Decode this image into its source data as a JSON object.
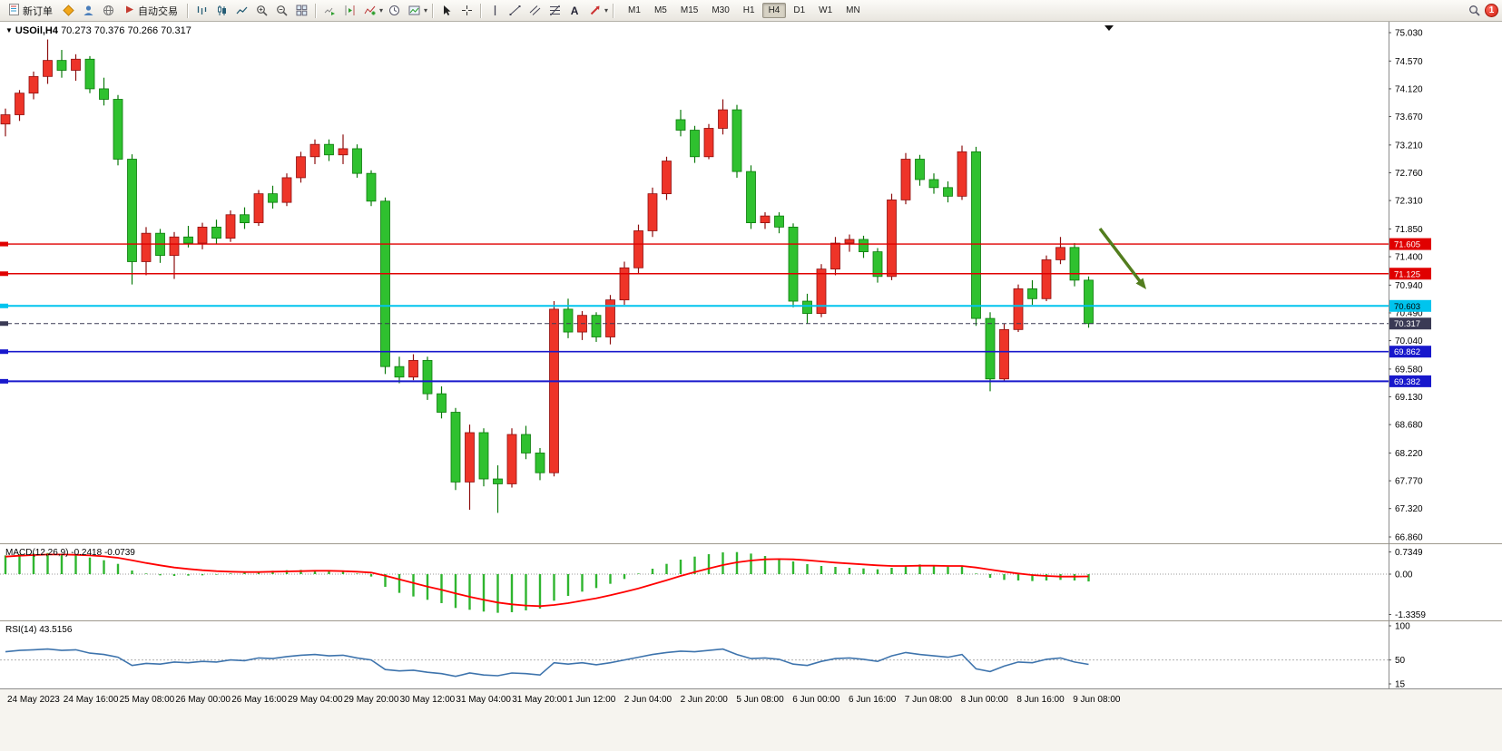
{
  "icons": {
    "collapse": "▼",
    "caret": "▾"
  },
  "toolbar": {
    "new_order_label": "新订单",
    "autotrading_label": "自动交易",
    "text_tool_label": "A",
    "timeframes": [
      "M1",
      "M5",
      "M15",
      "M30",
      "H1",
      "H4",
      "D1",
      "W1",
      "MN"
    ],
    "active_timeframe": "H4",
    "notification_count": "1"
  },
  "chart": {
    "symbol": "USOil,H4",
    "ohlc": "70.273 70.376 70.266 70.317",
    "price_max": 75.03,
    "price_min": 66.86,
    "price_axis": [
      "75.030",
      "74.570",
      "74.120",
      "73.670",
      "73.210",
      "72.760",
      "72.310",
      "71.850",
      "71.400",
      "70.940",
      "70.490",
      "70.040",
      "69.580",
      "69.130",
      "68.680",
      "68.220",
      "67.770",
      "67.320",
      "66.860"
    ],
    "hlines": [
      {
        "price": 71.605,
        "label": "71.605",
        "color": "#e00000",
        "text": "#ffffff",
        "width": 1.4
      },
      {
        "price": 71.125,
        "label": "71.125",
        "color": "#e00000",
        "text": "#ffffff",
        "width": 1.4
      },
      {
        "price": 70.603,
        "label": "70.603",
        "color": "#00c4ee",
        "text": "#000000",
        "width": 2
      },
      {
        "price": 70.317,
        "label": "70.317",
        "color": "#3a3a55",
        "text": "#ffffff",
        "width": 1,
        "dashed": true
      },
      {
        "price": 69.862,
        "label": "69.862",
        "color": "#1818cc",
        "text": "#ffffff",
        "width": 1.6
      },
      {
        "price": 69.382,
        "label": "69.382",
        "color": "#1818cc",
        "text": "#ffffff",
        "width": 2
      }
    ],
    "arrow_color": "#527d1e",
    "up_fill": "#ee3428",
    "up_stroke": "#8d0f0f",
    "down_fill": "#2fc12f",
    "down_stroke": "#0b7a0b"
  },
  "macd": {
    "name": "MACD(12,26,9)",
    "value_main": "-0.2418",
    "value_signal": "-0.0739",
    "axis": [
      "0.7349",
      "0.00",
      "-1.3359"
    ],
    "hist_color": "#2fb52f",
    "signal_color": "#ff0000"
  },
  "rsi": {
    "name": "RSI(14)",
    "value": "43.5156",
    "axis": [
      "100",
      "50",
      "15"
    ],
    "max": 100,
    "min": 15,
    "line_color": "#3e74ad"
  },
  "chart_data": [
    {
      "type": "candlestick",
      "title": "USOil,H4",
      "x_labels": [
        "24 May 2023",
        "24 May 16:00",
        "25 May 08:00",
        "26 May 00:00",
        "26 May 16:00",
        "29 May 04:00",
        "29 May 20:00",
        "30 May 12:00",
        "31 May 04:00",
        "31 May 20:00",
        "1 Jun 12:00",
        "2 Jun 04:00",
        "2 Jun 20:00",
        "5 Jun 08:00",
        "6 Jun 00:00",
        "6 Jun 16:00",
        "7 Jun 08:00",
        "8 Jun 00:00",
        "8 Jun 16:00",
        "9 Jun 08:00"
      ],
      "o": [
        73.55,
        73.7,
        74.05,
        74.32,
        74.58,
        74.42,
        74.6,
        74.12,
        73.95,
        72.98,
        71.32,
        71.78,
        71.42,
        71.72,
        71.62,
        71.88,
        71.7,
        72.08,
        71.95,
        72.42,
        72.28,
        72.68,
        73.02,
        73.22,
        73.05,
        73.15,
        72.75,
        72.3,
        69.62,
        69.45,
        69.72,
        69.18,
        68.88,
        67.75,
        68.55,
        67.8,
        67.72,
        68.52,
        68.22,
        67.9,
        70.55,
        70.18,
        70.45,
        70.1,
        70.7,
        71.22,
        71.82,
        72.42,
        73.62,
        73.45,
        73.02,
        73.48,
        73.78,
        72.78,
        71.95,
        72.06,
        71.88,
        70.68,
        70.48,
        71.2,
        71.62,
        71.68,
        71.48,
        71.08,
        72.32,
        72.98,
        72.65,
        72.52,
        72.38,
        73.1,
        70.4,
        69.42,
        70.22,
        70.88,
        70.72,
        71.35,
        71.55,
        71.02
      ],
      "h": [
        73.8,
        74.1,
        74.4,
        74.92,
        74.75,
        74.68,
        74.65,
        74.3,
        74.02,
        73.06,
        71.88,
        71.85,
        71.8,
        71.9,
        71.95,
        72.0,
        72.15,
        72.2,
        72.48,
        72.55,
        72.75,
        73.1,
        73.3,
        73.3,
        73.38,
        73.22,
        72.8,
        72.36,
        69.78,
        69.82,
        69.78,
        69.3,
        68.95,
        68.68,
        68.62,
        68.02,
        68.62,
        68.66,
        68.3,
        70.68,
        70.72,
        70.52,
        70.5,
        70.78,
        71.32,
        71.92,
        72.52,
        73.02,
        73.78,
        73.52,
        73.55,
        73.95,
        73.86,
        72.88,
        72.12,
        72.12,
        71.94,
        70.8,
        71.28,
        71.72,
        71.76,
        71.74,
        71.54,
        72.42,
        73.08,
        73.05,
        72.75,
        72.62,
        73.2,
        73.18,
        70.5,
        70.32,
        70.95,
        71.02,
        71.42,
        71.72,
        71.62,
        71.08
      ],
      "l": [
        73.35,
        73.6,
        73.95,
        74.2,
        74.3,
        74.25,
        74.05,
        73.85,
        72.88,
        70.95,
        71.1,
        71.3,
        71.04,
        71.55,
        71.52,
        71.6,
        71.64,
        71.85,
        71.9,
        72.18,
        72.22,
        72.6,
        72.9,
        72.95,
        72.9,
        72.68,
        72.22,
        69.5,
        69.35,
        69.4,
        69.08,
        68.78,
        67.62,
        67.3,
        67.68,
        67.25,
        67.66,
        68.12,
        67.78,
        67.84,
        70.08,
        70.05,
        70.02,
        69.98,
        70.62,
        71.12,
        71.72,
        72.32,
        73.35,
        72.92,
        72.98,
        73.38,
        72.68,
        71.85,
        71.85,
        71.78,
        70.58,
        70.32,
        70.42,
        71.1,
        71.48,
        71.38,
        70.98,
        71.02,
        72.25,
        72.55,
        72.42,
        72.28,
        72.32,
        70.28,
        69.22,
        69.38,
        70.18,
        70.62,
        70.68,
        71.28,
        70.92,
        70.25
      ],
      "c": [
        73.7,
        74.05,
        74.32,
        74.58,
        74.42,
        74.6,
        74.12,
        73.95,
        72.98,
        71.32,
        71.78,
        71.42,
        71.72,
        71.62,
        71.88,
        71.7,
        72.08,
        71.95,
        72.42,
        72.28,
        72.68,
        73.02,
        73.22,
        73.05,
        73.15,
        72.75,
        72.3,
        69.62,
        69.45,
        69.72,
        69.18,
        68.88,
        67.75,
        68.55,
        67.8,
        67.72,
        68.52,
        68.22,
        67.9,
        70.55,
        70.18,
        70.45,
        70.1,
        70.7,
        71.22,
        71.82,
        72.42,
        72.95,
        73.45,
        73.02,
        73.48,
        73.78,
        72.78,
        71.95,
        72.06,
        71.88,
        70.68,
        70.48,
        71.2,
        71.62,
        71.68,
        71.48,
        71.08,
        72.32,
        72.98,
        72.65,
        72.52,
        72.38,
        73.1,
        70.4,
        69.42,
        70.22,
        70.88,
        70.72,
        71.35,
        71.55,
        71.02,
        70.317
      ]
    },
    {
      "type": "bar",
      "name": "MACD",
      "values": [
        0.62,
        0.66,
        0.68,
        0.7,
        0.66,
        0.62,
        0.55,
        0.46,
        0.34,
        0.12,
        0.02,
        -0.04,
        -0.06,
        -0.05,
        -0.04,
        -0.02,
        0.02,
        0.05,
        0.08,
        0.11,
        0.13,
        0.14,
        0.13,
        0.11,
        0.08,
        0.02,
        -0.08,
        -0.42,
        -0.62,
        -0.74,
        -0.85,
        -0.96,
        -1.12,
        -1.18,
        -1.24,
        -1.28,
        -1.26,
        -1.2,
        -1.14,
        -0.88,
        -0.72,
        -0.58,
        -0.46,
        -0.32,
        -0.16,
        0.02,
        0.18,
        0.34,
        0.48,
        0.58,
        0.66,
        0.72,
        0.73,
        0.68,
        0.6,
        0.52,
        0.42,
        0.33,
        0.27,
        0.24,
        0.21,
        0.19,
        0.16,
        0.21,
        0.28,
        0.32,
        0.29,
        0.25,
        0.27,
        0.02,
        -0.12,
        -0.19,
        -0.21,
        -0.23,
        -0.21,
        -0.19,
        -0.21,
        -0.2418
      ],
      "signal": [
        0.58,
        0.61,
        0.63,
        0.65,
        0.65,
        0.64,
        0.62,
        0.59,
        0.54,
        0.46,
        0.37,
        0.29,
        0.22,
        0.17,
        0.13,
        0.1,
        0.08,
        0.07,
        0.07,
        0.08,
        0.09,
        0.1,
        0.11,
        0.11,
        0.1,
        0.08,
        0.05,
        -0.05,
        -0.17,
        -0.29,
        -0.41,
        -0.52,
        -0.64,
        -0.75,
        -0.85,
        -0.94,
        -1.0,
        -1.04,
        -1.06,
        -1.02,
        -0.96,
        -0.88,
        -0.8,
        -0.7,
        -0.59,
        -0.47,
        -0.34,
        -0.2,
        -0.06,
        0.07,
        0.19,
        0.3,
        0.39,
        0.45,
        0.49,
        0.5,
        0.49,
        0.46,
        0.42,
        0.38,
        0.35,
        0.32,
        0.29,
        0.27,
        0.27,
        0.28,
        0.28,
        0.27,
        0.27,
        0.22,
        0.15,
        0.08,
        0.02,
        -0.03,
        -0.06,
        -0.08,
        -0.08,
        -0.0739
      ],
      "ylim": [
        -1.3359,
        0.7349
      ]
    },
    {
      "type": "line",
      "name": "RSI",
      "values": [
        62,
        64,
        65,
        66,
        64,
        65,
        60,
        58,
        54,
        42,
        45,
        44,
        47,
        46,
        48,
        47,
        50,
        49,
        53,
        52,
        55,
        57,
        58,
        56,
        57,
        53,
        50,
        36,
        34,
        35,
        32,
        30,
        26,
        31,
        28,
        27,
        31,
        30,
        28,
        46,
        44,
        46,
        43,
        46,
        50,
        54,
        58,
        61,
        63,
        62,
        64,
        66,
        58,
        52,
        53,
        51,
        44,
        42,
        48,
        52,
        53,
        51,
        48,
        56,
        61,
        58,
        56,
        54,
        58,
        37,
        33,
        41,
        47,
        46,
        51,
        53,
        47,
        43.5156
      ],
      "ylim": [
        15,
        100
      ]
    }
  ]
}
